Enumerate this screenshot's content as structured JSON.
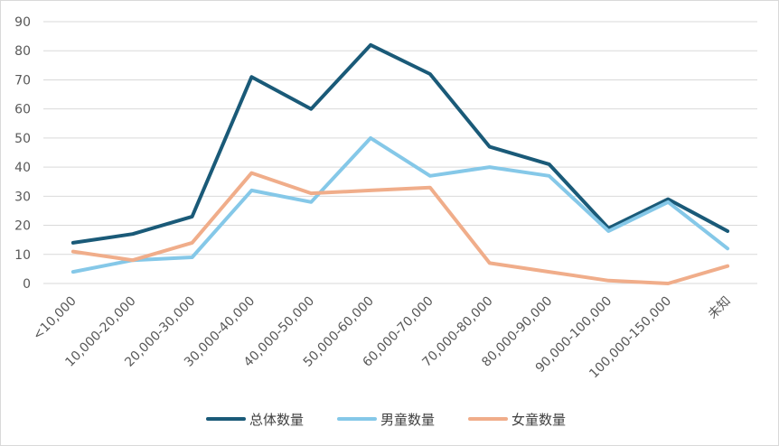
{
  "chart_data": {
    "type": "line",
    "categories": [
      "<10,000",
      "10,000-20,000",
      "20,000-30,000",
      "30,000-40,000",
      "40,000-50,000",
      "50,000-60,000",
      "60,000-70,000",
      "70,000-80,000",
      "80,000-90,000",
      "90,000-100,000",
      "100,000-150,000",
      "未知"
    ],
    "series": [
      {
        "name": "总体数量",
        "color": "#1a5a78",
        "values": [
          14,
          17,
          23,
          71,
          60,
          82,
          72,
          47,
          41,
          19,
          29,
          18
        ]
      },
      {
        "name": "男童数量",
        "color": "#85c8e8",
        "values": [
          4,
          8,
          9,
          32,
          28,
          50,
          37,
          40,
          37,
          18,
          28,
          12
        ]
      },
      {
        "name": "女童数量",
        "color": "#f0ad8a",
        "values": [
          11,
          8,
          14,
          38,
          31,
          32,
          33,
          7,
          4,
          1,
          0,
          6
        ]
      }
    ],
    "yticks": [
      "0",
      "10",
      "20",
      "30",
      "40",
      "50",
      "60",
      "70",
      "80",
      "90"
    ],
    "ylim": [
      0,
      90
    ],
    "grid": true,
    "legend": "bottom-center"
  }
}
